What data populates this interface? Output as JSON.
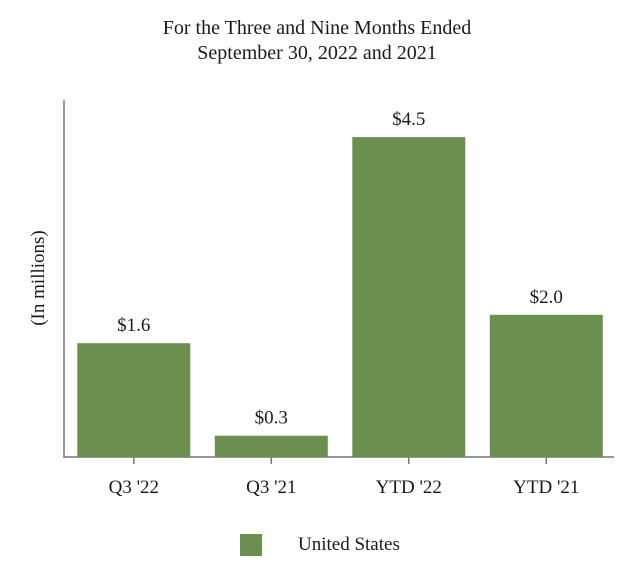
{
  "chart_data": {
    "type": "bar",
    "title": [
      "For the Three and Nine Months Ended",
      "September 30, 2022 and 2021"
    ],
    "ylabel": "(In millions)",
    "xlabel": "",
    "categories": [
      "Q3 '22",
      "Q3 '21",
      "YTD '22",
      "YTD '21"
    ],
    "series": [
      {
        "name": "United States",
        "values": [
          1.6,
          0.3,
          4.5,
          2.0
        ],
        "value_labels": [
          "$1.6",
          "$0.3",
          "$4.5",
          "$2.0"
        ]
      }
    ],
    "ylim": [
      0,
      5.0
    ],
    "grid": false,
    "legend_position": "bottom",
    "colors": {
      "bar": "#6a8f4f",
      "axis": "#777777",
      "text": "#1a1a1a"
    }
  }
}
